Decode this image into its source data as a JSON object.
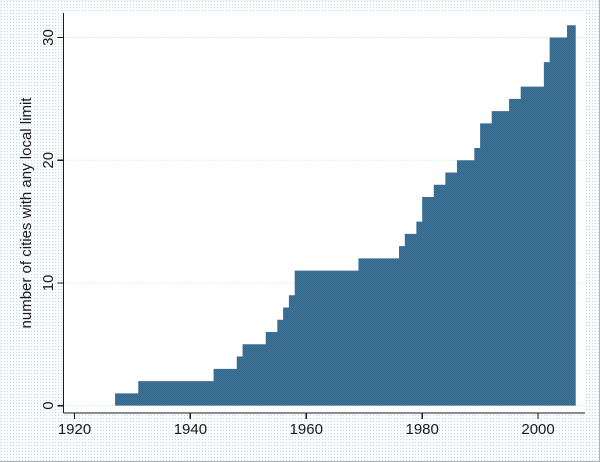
{
  "figure": {
    "bg_color": "#eaf2f3",
    "plot_bg": "#ffffff",
    "grid_color": "#b9dde8",
    "axis_color": "#1a1a1a",
    "area_fill": "#3f6d97",
    "area_dither_light": "#45719e",
    "area_dither_dark": "#2f6a84"
  },
  "chart_data": {
    "type": "area",
    "subtype": "step-cumulative",
    "title": "",
    "xlabel": "",
    "ylabel": "number of cities with any local limit",
    "xlim": [
      1918.1,
      2008.1
    ],
    "ylim": [
      -0.6,
      32
    ],
    "x_ticks": [
      1920,
      1940,
      1960,
      1980,
      2000
    ],
    "y_ticks": [
      0,
      10,
      20,
      30
    ],
    "grid": "horizontal-dotted",
    "legend": "none",
    "series": [
      {
        "name": "cities with any local limit",
        "steps": [
          [
            1927,
            1
          ],
          [
            1931,
            2
          ],
          [
            1944,
            3
          ],
          [
            1948,
            4
          ],
          [
            1949,
            5
          ],
          [
            1953,
            6
          ],
          [
            1955,
            7
          ],
          [
            1956,
            8
          ],
          [
            1957,
            9
          ],
          [
            1958,
            11
          ],
          [
            1969,
            12
          ],
          [
            1976,
            13
          ],
          [
            1977,
            14
          ],
          [
            1979,
            15
          ],
          [
            1980,
            17
          ],
          [
            1982,
            18
          ],
          [
            1984,
            19
          ],
          [
            1986,
            20
          ],
          [
            1989,
            21
          ],
          [
            1990,
            23
          ],
          [
            1992,
            24
          ],
          [
            1995,
            25
          ],
          [
            1997,
            26
          ],
          [
            2001,
            28
          ],
          [
            2002,
            30
          ],
          [
            2005,
            31
          ]
        ],
        "x_end": 2006.5,
        "final_value": 31
      }
    ]
  }
}
